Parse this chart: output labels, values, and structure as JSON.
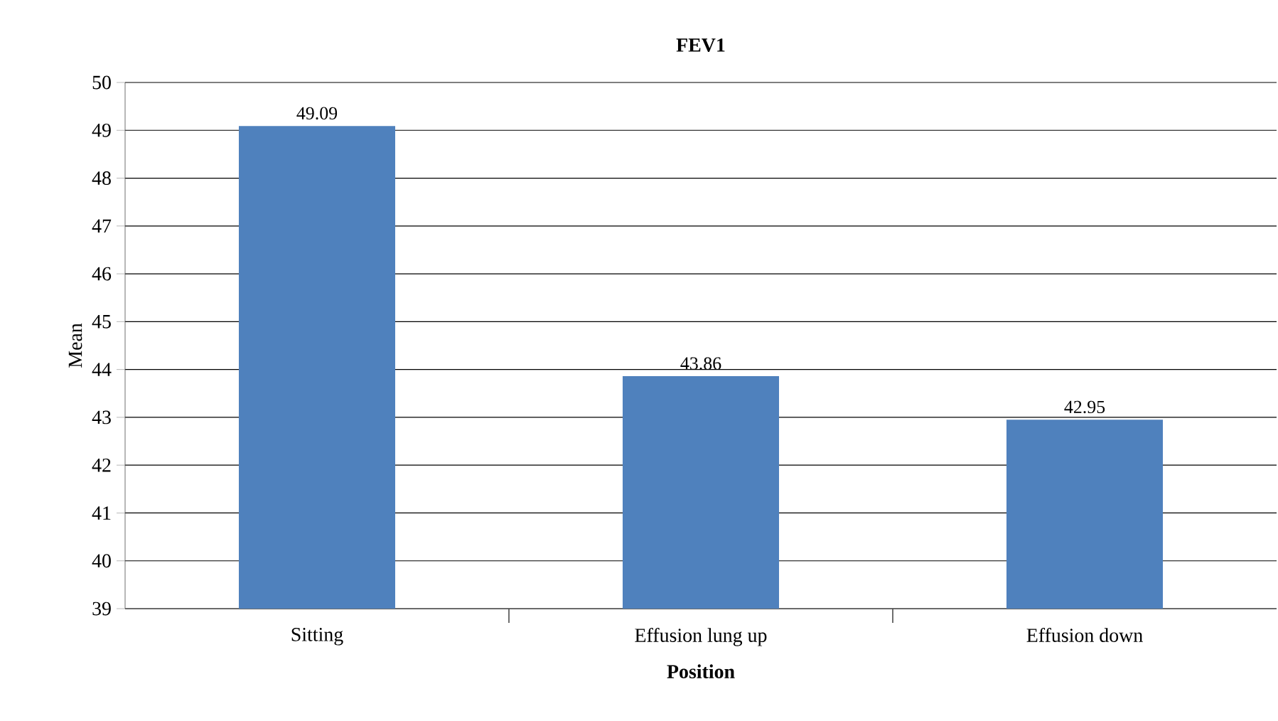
{
  "chart_data": {
    "type": "bar",
    "title": "FEV1",
    "xlabel": "Position",
    "ylabel": "Mean",
    "categories": [
      "Sitting",
      "Effusion lung up",
      "Effusion down"
    ],
    "values": [
      49.09,
      43.86,
      42.95
    ],
    "color": "#4f81bd",
    "ylim": [
      39,
      50
    ],
    "yticks": [
      39,
      40,
      41,
      42,
      43,
      44,
      45,
      46,
      47,
      48,
      49,
      50
    ],
    "grid": "y",
    "data_labels": true
  }
}
